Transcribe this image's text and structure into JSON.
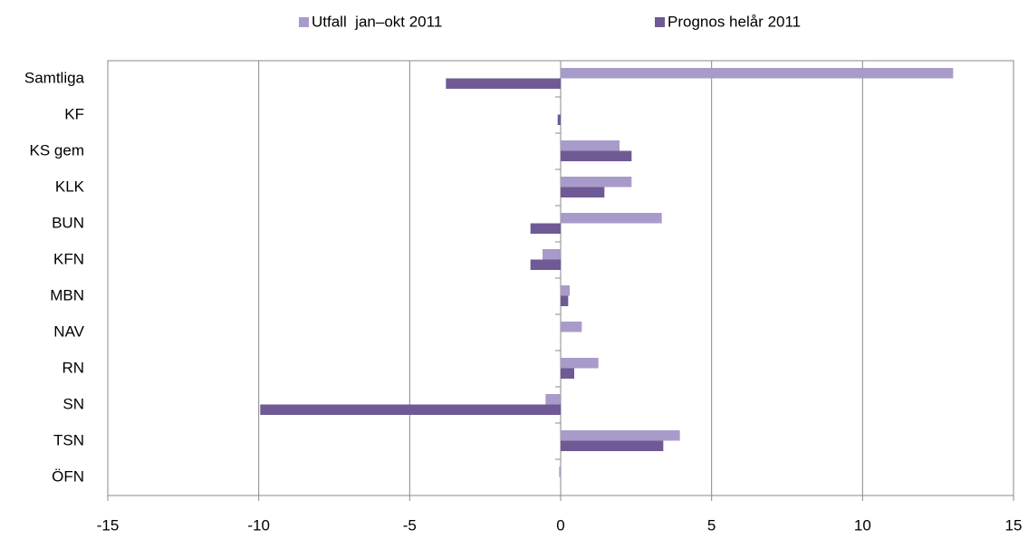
{
  "chart_data": {
    "type": "hbar",
    "categories": [
      "Samtliga",
      "KF",
      "KS gem",
      "KLK",
      "BUN",
      "KFN",
      "MBN",
      "NAV",
      "RN",
      "SN",
      "TSN",
      "ÖFN"
    ],
    "series": [
      {
        "name": "Utfall  jan–okt 2011",
        "color": "#a99bc9",
        "values": [
          13.0,
          0,
          1.95,
          2.35,
          3.35,
          -0.6,
          0.3,
          0.7,
          1.25,
          -0.5,
          3.95,
          -0.05
        ]
      },
      {
        "name": "Prognos helår 2011",
        "color": "#6f5a96",
        "values": [
          -3.8,
          -0.1,
          2.35,
          1.45,
          -1.0,
          -1.0,
          0.25,
          0,
          0.45,
          -9.95,
          3.4,
          0
        ]
      }
    ],
    "xlim": [
      -15,
      15
    ],
    "xticks": [
      -15,
      -10,
      -5,
      0,
      5,
      10,
      15
    ],
    "grid": true,
    "legend": "top"
  }
}
